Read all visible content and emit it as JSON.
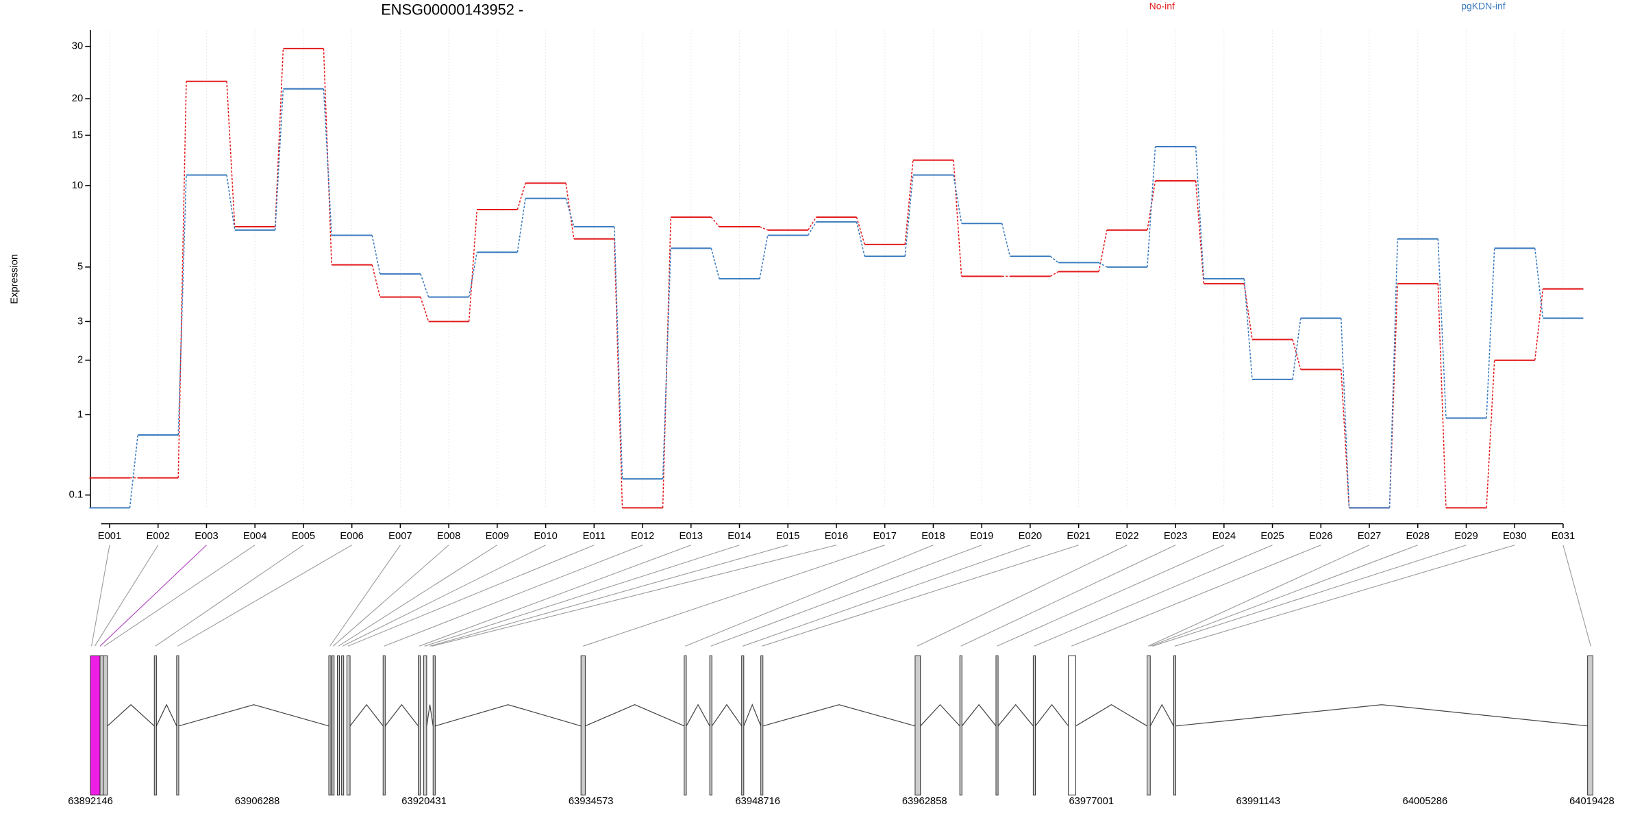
{
  "chart_data": {
    "type": "line",
    "title": "ENSG00000143952 -",
    "y_label": "Expression",
    "y_scale": "log1p",
    "categories": [
      "E001",
      "E002",
      "E003",
      "E004",
      "E005",
      "E006",
      "E007",
      "E008",
      "E009",
      "E010",
      "E011",
      "E012",
      "E013",
      "E014",
      "E015",
      "E016",
      "E017",
      "E018",
      "E019",
      "E020",
      "E021",
      "E022",
      "E023",
      "E024",
      "E025",
      "E026",
      "E027",
      "E028",
      "E029",
      "E030",
      "E031"
    ],
    "series": [
      {
        "name": "No-inf",
        "color": "#e31a1c",
        "values": [
          0.25,
          0.25,
          22.9,
          7.1,
          29.5,
          5.1,
          3.8,
          3.0,
          8.2,
          10.2,
          6.4,
          0,
          7.7,
          7.1,
          6.9,
          7.7,
          6.1,
          12.3,
          4.6,
          4.6,
          4.8,
          6.9,
          10.4,
          4.3,
          2.5,
          1.8,
          0,
          4.3,
          0,
          2.0,
          4.1
        ]
      },
      {
        "name": "pgKDN-inf",
        "color": "#3a7bbf",
        "values": [
          0,
          0.72,
          10.9,
          6.9,
          21.6,
          6.6,
          4.7,
          3.8,
          5.7,
          9.0,
          7.1,
          0.24,
          5.9,
          4.5,
          6.6,
          7.4,
          5.5,
          10.9,
          7.3,
          5.5,
          5.2,
          5.0,
          13.7,
          4.5,
          1.6,
          3.1,
          0,
          6.4,
          0.95,
          5.9,
          3.1
        ]
      }
    ],
    "ylim": [
      0,
      34
    ],
    "yticks": [
      0.1,
      1,
      2,
      3,
      5,
      10,
      15,
      20,
      30
    ],
    "grid": true,
    "genomic_xlim": [
      63892146,
      64019428
    ],
    "genomic_ticks": [
      63892146,
      63906288,
      63920431,
      63934573,
      63948716,
      63962858,
      63977001,
      63991143,
      64005286,
      64019428
    ]
  }
}
